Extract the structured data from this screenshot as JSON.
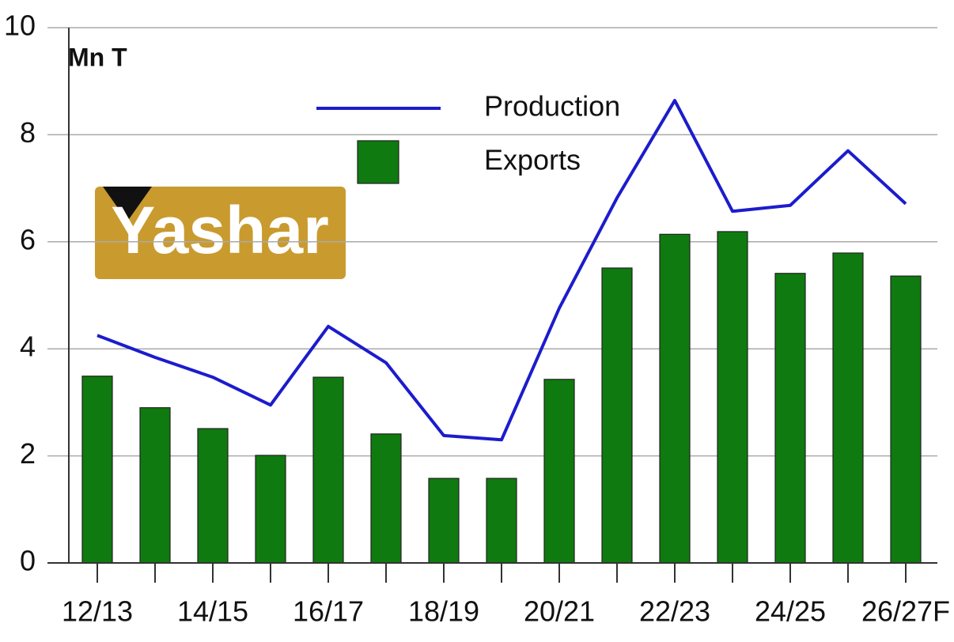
{
  "logo": "Yashar",
  "chart_data": {
    "type": "bar",
    "y_label": "Mn T",
    "categories": [
      "12/13",
      null,
      "14/15",
      null,
      "16/17",
      null,
      "18/19",
      null,
      "20/21",
      null,
      "22/23",
      null,
      "24/25",
      null,
      "26/27F"
    ],
    "series": [
      {
        "name": "Production",
        "type": "line",
        "color": "#1c1ccc",
        "values": [
          4.25,
          3.84,
          3.47,
          2.95,
          4.42,
          3.74,
          2.38,
          2.3,
          4.76,
          6.82,
          8.64,
          6.57,
          6.68,
          7.7,
          6.71
        ]
      },
      {
        "name": "Exports",
        "type": "bar",
        "color": "#0f7a0f",
        "values": [
          3.49,
          2.9,
          2.51,
          2.01,
          3.47,
          2.41,
          1.58,
          1.58,
          3.43,
          5.51,
          6.14,
          6.19,
          5.41,
          5.79,
          5.36
        ]
      }
    ],
    "ylim": [
      0,
      10
    ],
    "yticks": [
      0,
      2,
      4,
      6,
      8,
      10
    ],
    "grid": true
  }
}
